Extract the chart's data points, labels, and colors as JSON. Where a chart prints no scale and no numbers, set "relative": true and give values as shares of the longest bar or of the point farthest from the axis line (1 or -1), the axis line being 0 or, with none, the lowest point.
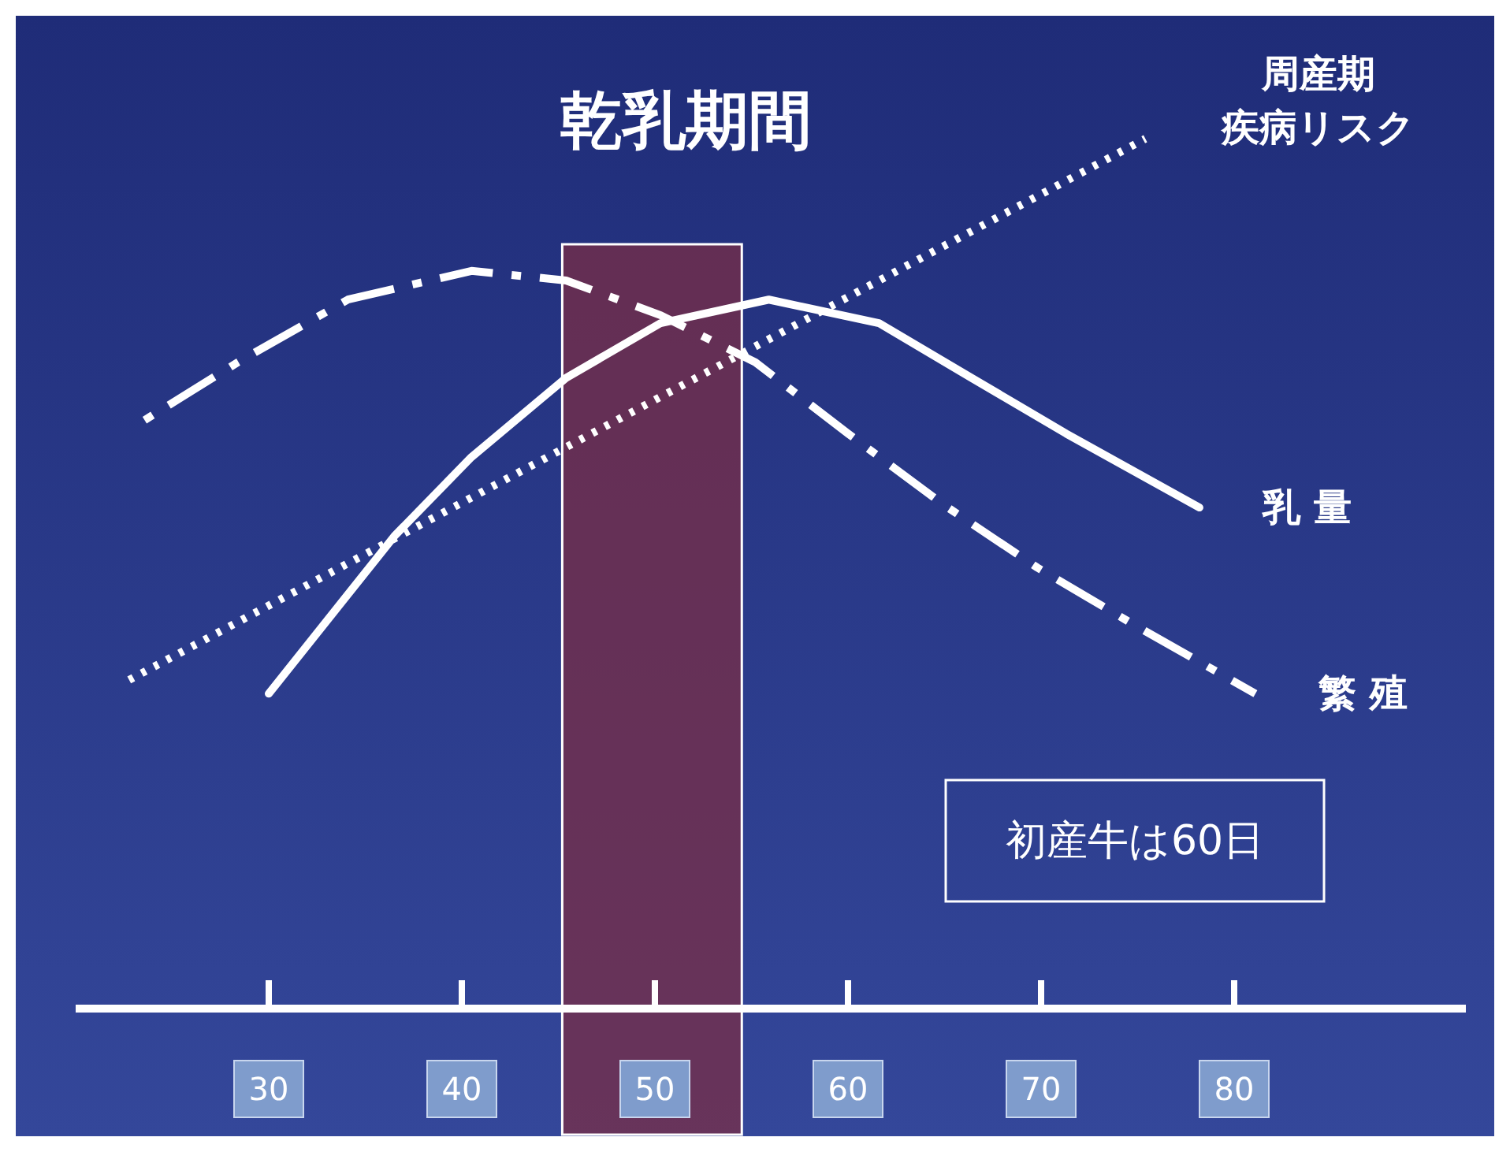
{
  "chart_data": {
    "type": "line",
    "title": "乾乳期間",
    "relative": true,
    "tick_labels": "x",
    "xlim": [
      20,
      92
    ],
    "xticks": [
      30,
      40,
      50,
      60,
      70,
      80
    ],
    "series": [
      {
        "name": "周産期疾病リスク",
        "color": "#ffffff",
        "line_style": "dotted",
        "x": [
          22.7,
          75.4
        ],
        "values": [
          0.377,
          1
        ]
      },
      {
        "name": "乳 量",
        "color": "#ffffff",
        "line_style": "solid",
        "x": [
          30,
          36.5,
          40.5,
          45.4,
          50.3,
          55.9,
          61.6,
          66.4,
          71.3,
          78.2
        ],
        "values": [
          0.362,
          0.543,
          0.634,
          0.725,
          0.788,
          0.815,
          0.788,
          0.725,
          0.661,
          0.576
        ]
      },
      {
        "name": "繁 殖",
        "color": "#ffffff",
        "line_style": "dashed",
        "x": [
          23.1,
          28.4,
          34.1,
          40.5,
          45.4,
          50.3,
          55.2,
          60.0,
          64.9,
          69.8,
          74.6,
          81.1
        ],
        "values": [
          0.67,
          0.743,
          0.815,
          0.848,
          0.837,
          0.797,
          0.743,
          0.661,
          0.58,
          0.507,
          0.444,
          0.362
        ]
      }
    ],
    "bands": [
      {
        "axis": "x",
        "from": 45.2,
        "to": 54.5,
        "color": "#7a2e45"
      }
    ],
    "annotations": [
      "初産牛は60日"
    ]
  }
}
